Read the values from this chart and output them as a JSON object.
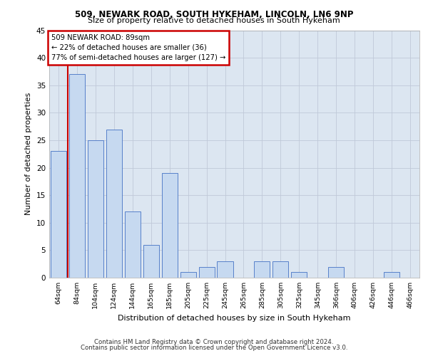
{
  "title1": "509, NEWARK ROAD, SOUTH HYKEHAM, LINCOLN, LN6 9NP",
  "title2": "Size of property relative to detached houses in South Hykeham",
  "xlabel": "Distribution of detached houses by size in South Hykeham",
  "ylabel": "Number of detached properties",
  "categories": [
    "64sqm",
    "84sqm",
    "104sqm",
    "124sqm",
    "144sqm",
    "165sqm",
    "185sqm",
    "205sqm",
    "225sqm",
    "245sqm",
    "265sqm",
    "285sqm",
    "305sqm",
    "325sqm",
    "345sqm",
    "366sqm",
    "406sqm",
    "426sqm",
    "446sqm",
    "466sqm"
  ],
  "values": [
    23,
    37,
    25,
    27,
    12,
    6,
    19,
    1,
    2,
    3,
    0,
    3,
    3,
    1,
    0,
    2,
    0,
    0,
    1,
    0
  ],
  "bar_color": "#c6d9f0",
  "bar_edge_color": "#4472c4",
  "vline_x": 0.5,
  "vline_color": "#cc0000",
  "annotation_title": "509 NEWARK ROAD: 89sqm",
  "annotation_line1": "← 22% of detached houses are smaller (36)",
  "annotation_line2": "77% of semi-detached houses are larger (127) →",
  "annotation_box_color": "#ffffff",
  "annotation_edge_color": "#cc0000",
  "ylim": [
    0,
    45
  ],
  "yticks": [
    0,
    5,
    10,
    15,
    20,
    25,
    30,
    35,
    40,
    45
  ],
  "grid_color": "#c0c9d8",
  "bg_color": "#dce6f1",
  "footer1": "Contains HM Land Registry data © Crown copyright and database right 2024.",
  "footer2": "Contains public sector information licensed under the Open Government Licence v3.0."
}
